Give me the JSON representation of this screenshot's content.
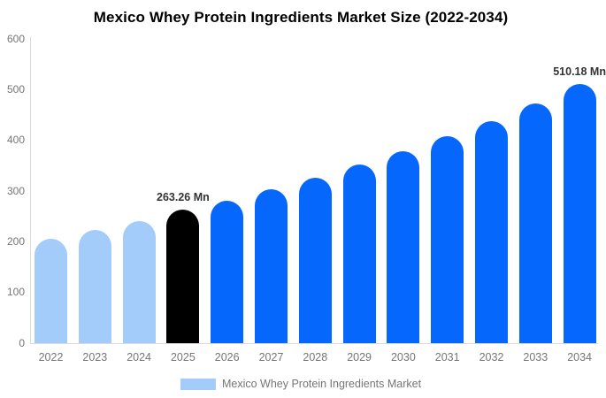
{
  "title": "Mexico Whey Protein Ingredients Market Size (2022-2034)",
  "legend": {
    "label": "Mexico Whey Protein Ingredients Market",
    "swatch_color": "#a3ccfb"
  },
  "colors": {
    "historical_bar": "#a3ccfb",
    "base_year_bar": "#000000",
    "forecast_bar": "#0667fd",
    "axis_text": "#757575",
    "axis_line": "#d9d9d9",
    "annotation_text": "#333333",
    "title_text": "#000000"
  },
  "chart_data": {
    "type": "bar",
    "title": "Mexico Whey Protein Ingredients Market Size (2022-2034)",
    "categories": [
      "2022",
      "2023",
      "2024",
      "2025",
      "2026",
      "2027",
      "2028",
      "2029",
      "2030",
      "2031",
      "2032",
      "2033",
      "2034"
    ],
    "values": [
      206,
      224,
      240,
      263.26,
      281,
      303,
      327,
      352,
      379,
      408,
      438,
      473,
      510.18
    ],
    "bar_colors": [
      "#a3ccfb",
      "#a3ccfb",
      "#a3ccfb",
      "#000000",
      "#0667fd",
      "#0667fd",
      "#0667fd",
      "#0667fd",
      "#0667fd",
      "#0667fd",
      "#0667fd",
      "#0667fd",
      "#0667fd"
    ],
    "xlabel": "",
    "ylabel": "",
    "ylim": [
      0,
      600
    ],
    "yticks": [
      0,
      100,
      200,
      300,
      400,
      500,
      600
    ],
    "grid": false,
    "legend_position": "bottom",
    "annotations": [
      {
        "category": "2025",
        "text": "263.26 Mn"
      },
      {
        "category": "2034",
        "text": "510.18 Mn"
      }
    ]
  }
}
